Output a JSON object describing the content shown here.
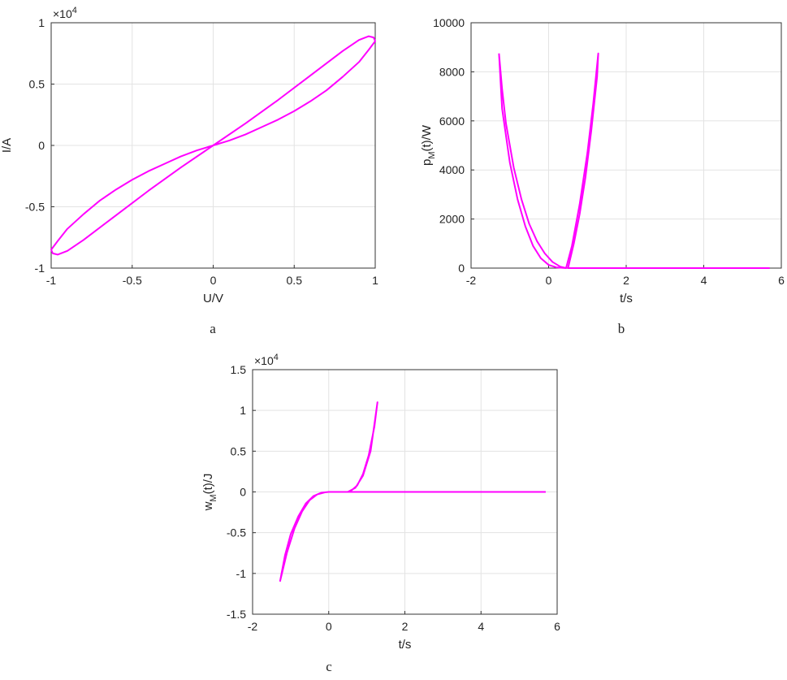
{
  "chart_data": [
    {
      "type": "line",
      "caption": "a",
      "xlabel": "U/V",
      "ylabel": "I/A",
      "multiplier": "×10",
      "multiplier_exponent": "4",
      "color": "#ff00ff",
      "grid": true,
      "xlim": [
        -1,
        1
      ],
      "ylim": [
        -1,
        1
      ],
      "xticks": [
        -1,
        -0.5,
        0,
        0.5,
        1
      ],
      "yticks": [
        -1,
        -0.5,
        0,
        0.5,
        1
      ],
      "x": [
        0,
        0.1,
        0.2,
        0.3,
        0.4,
        0.5,
        0.6,
        0.7,
        0.8,
        0.9,
        0.96,
        1,
        0.99,
        0.96,
        0.9,
        0.8,
        0.6,
        0.4,
        0.2,
        0,
        -0.1,
        -0.2,
        -0.3,
        -0.4,
        -0.5,
        -0.6,
        -0.7,
        -0.8,
        -0.9,
        -0.96,
        -1,
        -0.99,
        -0.96,
        -0.9,
        -0.8,
        -0.6,
        -0.4,
        -0.2,
        0
      ],
      "values": [
        0,
        0.04,
        0.09,
        0.15,
        0.21,
        0.28,
        0.36,
        0.45,
        0.56,
        0.68,
        0.78,
        0.85,
        0.88,
        0.89,
        0.86,
        0.77,
        0.57,
        0.37,
        0.18,
        0,
        -0.04,
        -0.09,
        -0.15,
        -0.21,
        -0.28,
        -0.36,
        -0.45,
        -0.56,
        -0.68,
        -0.78,
        -0.85,
        -0.88,
        -0.89,
        -0.86,
        -0.77,
        -0.57,
        -0.37,
        -0.18,
        0
      ]
    },
    {
      "type": "line",
      "caption": "b",
      "xlabel": "t/s",
      "ylabel": "p",
      "ylabel_subscript": "M",
      "ylabel_suffix": "(t)/W",
      "color": "#ff00ff",
      "grid": true,
      "xlim": [
        -2,
        6
      ],
      "ylim": [
        0,
        10000
      ],
      "xticks": [
        -2,
        0,
        2,
        4,
        6
      ],
      "yticks": [
        0,
        2000,
        4000,
        6000,
        8000,
        10000
      ],
      "x": [
        -1.28,
        -1.2,
        -1.0,
        -0.8,
        -0.6,
        -0.4,
        -0.2,
        0,
        0.2,
        0.45,
        0.3,
        0.1,
        -0.1,
        -0.3,
        -0.5,
        -0.7,
        -0.9,
        -1.1,
        -1.2,
        -1.28,
        null,
        0.45,
        0.6,
        0.8,
        1.0,
        1.15,
        1.28,
        1.25,
        1.1,
        0.95,
        0.8,
        0.65,
        0.5,
        1,
        2,
        3,
        4,
        5,
        5.7
      ],
      "values": [
        8750,
        6500,
        4300,
        2800,
        1700,
        900,
        400,
        130,
        30,
        0,
        60,
        250,
        600,
        1100,
        1800,
        2800,
        4100,
        5900,
        7300,
        8750,
        null,
        0,
        900,
        2600,
        4700,
        6700,
        8750,
        7800,
        5600,
        3700,
        2200,
        1000,
        0,
        0,
        0,
        0,
        0,
        0,
        0
      ]
    },
    {
      "type": "line",
      "caption": "c",
      "xlabel": "t/s",
      "ylabel": "w",
      "ylabel_subscript": "M",
      "ylabel_suffix": "(t)/J",
      "multiplier": "×10",
      "multiplier_exponent": "4",
      "color": "#ff00ff",
      "grid": true,
      "xlim": [
        -2,
        6
      ],
      "ylim": [
        -1.5,
        1.5
      ],
      "xticks": [
        -2,
        0,
        2,
        4,
        6
      ],
      "yticks": [
        -1.5,
        -1,
        -0.5,
        0,
        0.5,
        1,
        1.5
      ],
      "x": [
        -1.28,
        -1.1,
        -0.9,
        -0.7,
        -0.5,
        -0.3,
        -0.1,
        0,
        -0.2,
        -0.4,
        -0.6,
        -0.8,
        -1.0,
        -1.15,
        -1.28,
        null,
        0,
        0.5,
        1,
        2,
        3,
        4,
        5,
        5.7,
        null,
        0.5,
        0.7,
        0.9,
        1.1,
        1.28,
        1.2,
        1.05,
        0.9,
        0.75,
        0.6,
        0.5
      ],
      "values": [
        -1.1,
        -0.75,
        -0.45,
        -0.24,
        -0.1,
        -0.03,
        -0.005,
        0,
        -0.01,
        -0.05,
        -0.14,
        -0.3,
        -0.52,
        -0.78,
        -1.1,
        null,
        0,
        0,
        0,
        0,
        0,
        0,
        0,
        0,
        null,
        0,
        0.05,
        0.2,
        0.5,
        1.1,
        0.8,
        0.45,
        0.22,
        0.08,
        0.02,
        0
      ]
    }
  ]
}
